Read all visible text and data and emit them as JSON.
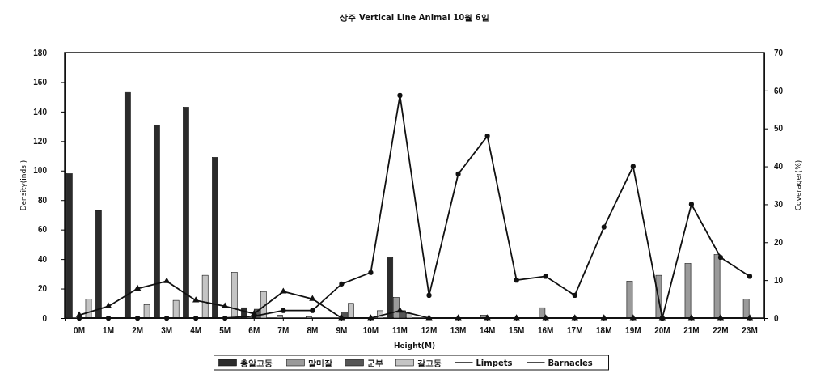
{
  "chart_data": {
    "type": "bar",
    "title": "상주 Vertical Line Animal 10월 6일",
    "xlabel": "Height(M)",
    "ylabel": "Density(inds.)",
    "y2label": "Coverager(%)",
    "categories": [
      "0M",
      "1M",
      "2M",
      "3M",
      "4M",
      "5M",
      "6M",
      "7M",
      "8M",
      "9M",
      "10M",
      "11M",
      "12M",
      "13M",
      "14M",
      "15M",
      "16M",
      "17M",
      "18M",
      "19M",
      "20M",
      "21M",
      "22M",
      "23M"
    ],
    "series": [
      {
        "name": "총알고둥",
        "color": "#2b2b2b",
        "values": [
          98,
          73,
          153,
          131,
          143,
          109,
          7,
          0,
          0,
          0,
          0,
          41,
          0,
          0,
          0,
          0,
          0,
          0,
          0,
          0,
          0,
          0,
          0,
          0
        ]
      },
      {
        "name": "말미잘",
        "color": "#9a9a9a",
        "values": [
          0,
          0,
          0,
          0,
          0,
          0,
          0,
          2,
          1,
          0,
          0,
          14,
          0,
          null,
          2,
          null,
          7,
          0,
          0,
          25,
          29,
          37,
          43,
          13
        ]
      },
      {
        "name": "군부",
        "color": "#555555",
        "values": [
          0,
          0,
          0,
          0,
          0,
          0,
          6,
          0,
          0,
          4,
          0,
          5,
          0,
          0,
          0,
          0,
          0,
          0,
          0,
          0,
          0,
          0,
          0,
          0
        ]
      },
      {
        "name": "갈고둥",
        "color": "#c4c4c4",
        "values": [
          13,
          0,
          9,
          12,
          29,
          31,
          18,
          0,
          0,
          10,
          5,
          3,
          0,
          0,
          0,
          0,
          0,
          0,
          0,
          0,
          0,
          0,
          0,
          0
        ]
      },
      {
        "name": "Limpets",
        "type": "line",
        "color": "#111111",
        "marker": "triangle",
        "values": [
          2,
          8,
          20,
          25,
          12,
          8,
          3,
          18,
          13,
          0,
          0,
          5,
          0,
          0,
          0,
          0,
          0,
          0,
          0,
          0,
          0,
          0,
          0,
          0
        ]
      },
      {
        "name": "Barnacles",
        "type": "line",
        "axis": "y2",
        "color": "#111111",
        "marker": "circle",
        "values": [
          0,
          0,
          0,
          0,
          0,
          0,
          0.5,
          2,
          2,
          9,
          12,
          58.7,
          6,
          38,
          48,
          10,
          11,
          6,
          24,
          40,
          0,
          30,
          16,
          11
        ]
      }
    ],
    "ylim": [
      0,
      180
    ],
    "yticks": [
      0,
      20,
      40,
      60,
      80,
      100,
      120,
      140,
      160,
      180
    ],
    "y2lim": [
      0,
      70
    ],
    "y2ticks": [
      0,
      10,
      20,
      30,
      40,
      50,
      60,
      70
    ],
    "legend": "bottom"
  }
}
